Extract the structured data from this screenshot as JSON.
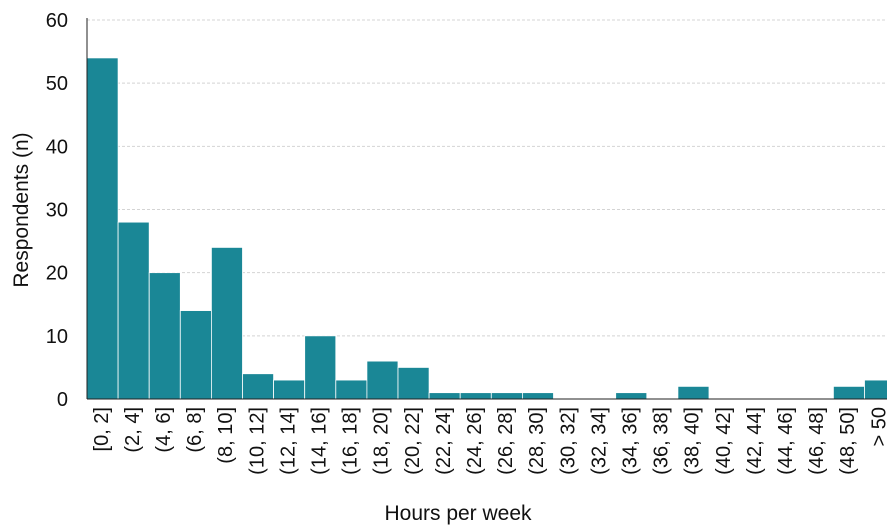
{
  "chart_data": {
    "type": "bar",
    "xlabel": "Hours per week",
    "ylabel": "Respondents (n)",
    "ylim": [
      0,
      60
    ],
    "yticks": [
      0,
      10,
      20,
      30,
      40,
      50,
      60
    ],
    "grid": true,
    "bar_color": "#1a8796",
    "categories": [
      "[0, 2]",
      "(2, 4]",
      "(4, 6]",
      "(6, 8]",
      "(8, 10]",
      "(10, 12]",
      "(12, 14]",
      "(14, 16]",
      "(16, 18]",
      "(18, 20]",
      "(20, 22]",
      "(22, 24]",
      "(24, 26]",
      "(26, 28]",
      "(28, 30]",
      "(30, 32]",
      "(32, 34]",
      "(34, 36]",
      "(36, 38]",
      "(38, 40]",
      "(40, 42]",
      "(42, 44]",
      "(44, 46]",
      "(46, 48]",
      "(48, 50]",
      "> 50"
    ],
    "values": [
      54,
      28,
      20,
      14,
      24,
      4,
      3,
      10,
      3,
      6,
      5,
      1,
      1,
      1,
      1,
      0,
      0,
      1,
      0,
      2,
      0,
      0,
      0,
      0,
      2,
      3
    ]
  }
}
